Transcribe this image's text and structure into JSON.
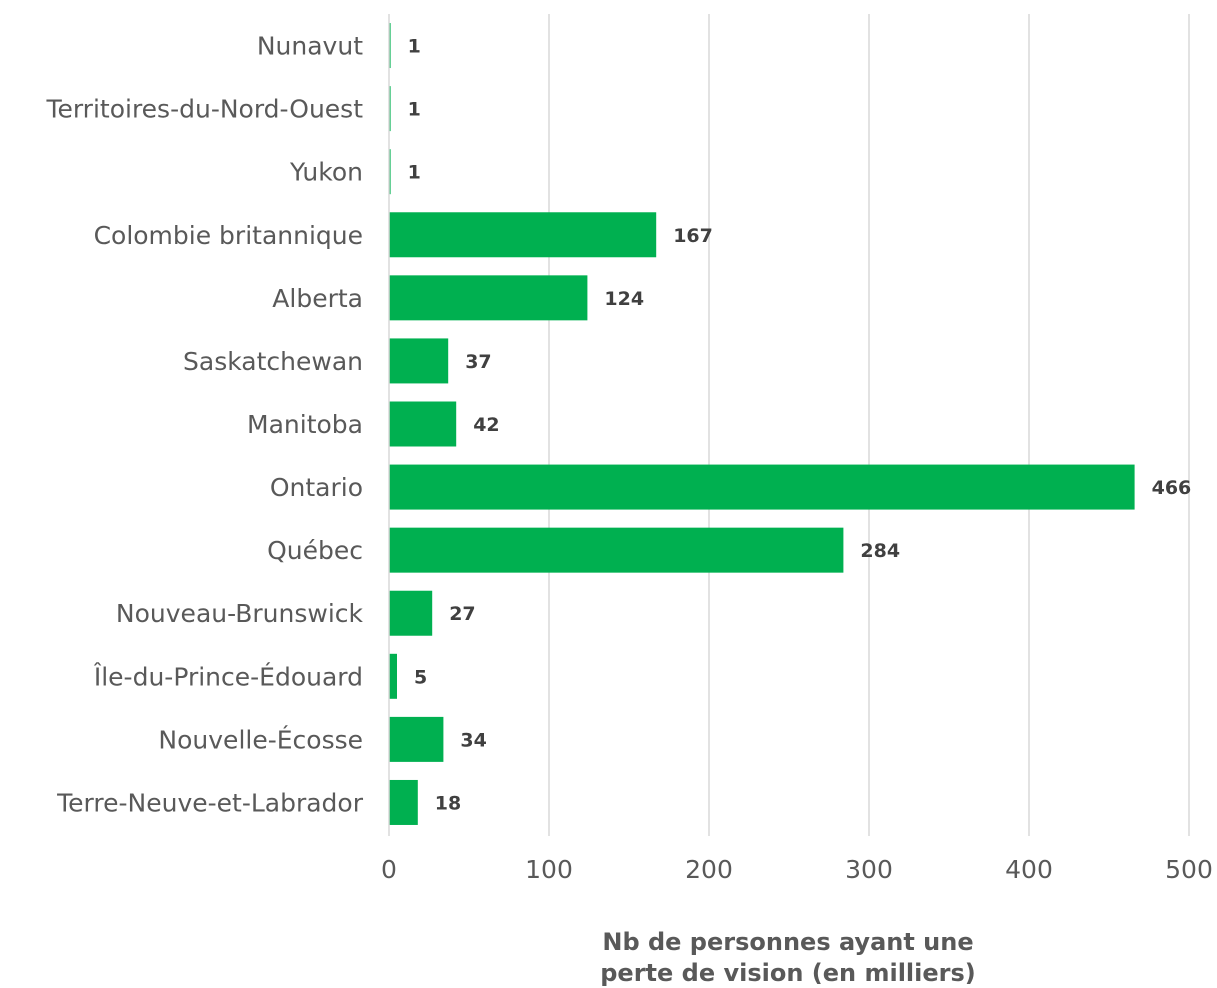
{
  "chart_data": {
    "type": "bar",
    "orientation": "horizontal",
    "categories": [
      "Nunavut",
      "Territoires-du-Nord-Ouest",
      "Yukon",
      "Colombie britannique",
      "Alberta",
      "Saskatchewan",
      "Manitoba",
      "Ontario",
      "Québec",
      "Nouveau-Brunswick",
      "Île-du-Prince-Édouard",
      "Nouvelle-Écosse",
      "Terre-Neuve-et-Labrador"
    ],
    "values": [
      1,
      1,
      1,
      167,
      124,
      37,
      42,
      466,
      284,
      27,
      5,
      34,
      18
    ],
    "data_labels": [
      "1",
      "1",
      "1",
      "167",
      "124",
      "37",
      "42",
      "466",
      "284",
      "27",
      "5",
      "34",
      "18"
    ],
    "xlabel_lines": [
      "Nb de personnes ayant une",
      "perte de vision (en milliers)"
    ],
    "xlim": [
      0,
      500
    ],
    "xticks": [
      0,
      100,
      200,
      300,
      400,
      500
    ],
    "xtick_labels": [
      "0",
      "100",
      "200",
      "300",
      "400",
      "500"
    ],
    "grid": "vertical",
    "legend": "none",
    "colors": {
      "bar": "#00b050",
      "grid": "#d9d9d9",
      "axis": "#d9d9d9"
    }
  }
}
